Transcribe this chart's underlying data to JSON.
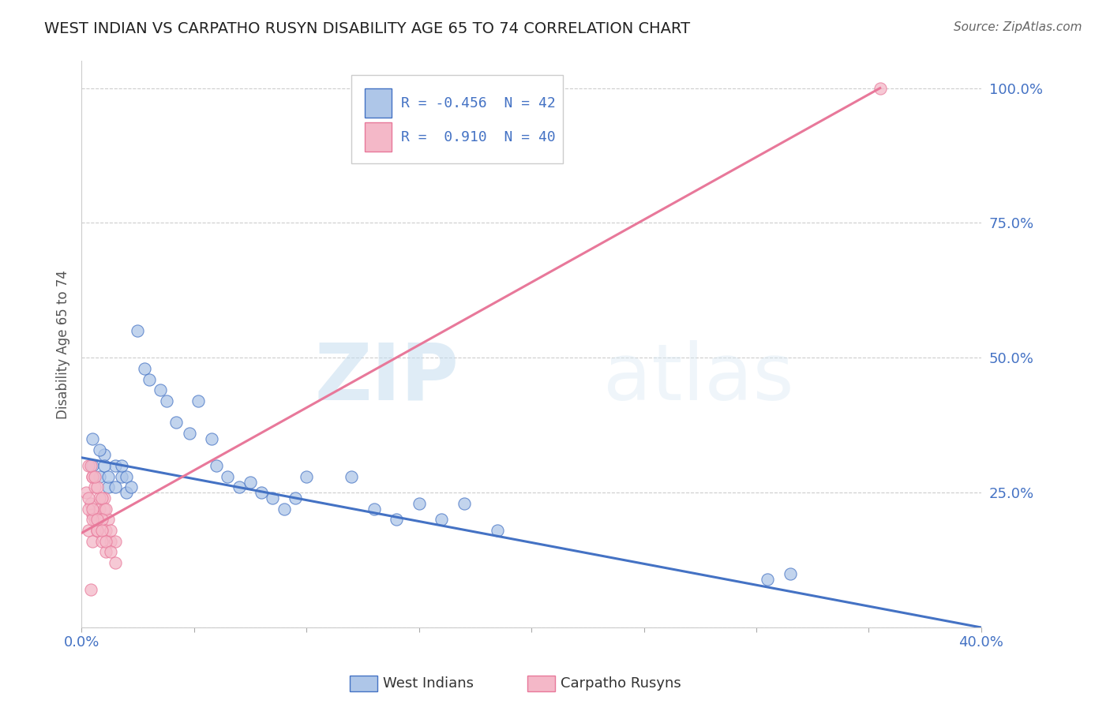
{
  "title": "WEST INDIAN VS CARPATHO RUSYN DISABILITY AGE 65 TO 74 CORRELATION CHART",
  "source": "Source: ZipAtlas.com",
  "ylabel": "Disability Age 65 to 74",
  "watermark_zip": "ZIP",
  "watermark_atlas": "atlas",
  "legend_blue_R": "-0.456",
  "legend_blue_N": "42",
  "legend_pink_R": "0.910",
  "legend_pink_N": "40",
  "blue_label": "West Indians",
  "pink_label": "Carpatho Rusyns",
  "xlim": [
    0.0,
    0.4
  ],
  "ylim": [
    0.0,
    1.05
  ],
  "x_ticks": [
    0.0,
    0.05,
    0.1,
    0.15,
    0.2,
    0.25,
    0.3,
    0.35,
    0.4
  ],
  "y_ticks": [
    0.0,
    0.25,
    0.5,
    0.75,
    1.0
  ],
  "background_color": "#ffffff",
  "grid_color": "#cccccc",
  "title_color": "#222222",
  "blue_color": "#aec6e8",
  "blue_line_color": "#4472c4",
  "pink_color": "#f4b8c8",
  "pink_line_color": "#e8789a",
  "blue_scatter_x": [
    0.005,
    0.008,
    0.01,
    0.012,
    0.015,
    0.018,
    0.02,
    0.005,
    0.008,
    0.01,
    0.012,
    0.015,
    0.018,
    0.02,
    0.022,
    0.025,
    0.028,
    0.03,
    0.035,
    0.038,
    0.042,
    0.048,
    0.052,
    0.058,
    0.06,
    0.065,
    0.07,
    0.075,
    0.08,
    0.085,
    0.09,
    0.095,
    0.1,
    0.12,
    0.13,
    0.14,
    0.15,
    0.16,
    0.17,
    0.185,
    0.305,
    0.315
  ],
  "blue_scatter_y": [
    0.3,
    0.28,
    0.32,
    0.26,
    0.3,
    0.28,
    0.25,
    0.35,
    0.33,
    0.3,
    0.28,
    0.26,
    0.3,
    0.28,
    0.26,
    0.55,
    0.48,
    0.46,
    0.44,
    0.42,
    0.38,
    0.36,
    0.42,
    0.35,
    0.3,
    0.28,
    0.26,
    0.27,
    0.25,
    0.24,
    0.22,
    0.24,
    0.28,
    0.28,
    0.22,
    0.2,
    0.23,
    0.2,
    0.23,
    0.18,
    0.09,
    0.1
  ],
  "pink_scatter_x": [
    0.002,
    0.004,
    0.005,
    0.006,
    0.008,
    0.01,
    0.005,
    0.006,
    0.008,
    0.01,
    0.012,
    0.003,
    0.005,
    0.007,
    0.009,
    0.011,
    0.003,
    0.005,
    0.007,
    0.009,
    0.011,
    0.013,
    0.003,
    0.005,
    0.007,
    0.009,
    0.011,
    0.013,
    0.015,
    0.003,
    0.005,
    0.007,
    0.009,
    0.011,
    0.013,
    0.015,
    0.004,
    0.006,
    0.004,
    0.355
  ],
  "pink_scatter_y": [
    0.25,
    0.23,
    0.21,
    0.2,
    0.22,
    0.24,
    0.28,
    0.26,
    0.24,
    0.22,
    0.2,
    0.3,
    0.28,
    0.26,
    0.24,
    0.22,
    0.18,
    0.16,
    0.18,
    0.2,
    0.18,
    0.16,
    0.22,
    0.2,
    0.18,
    0.16,
    0.14,
    0.18,
    0.16,
    0.24,
    0.22,
    0.2,
    0.18,
    0.16,
    0.14,
    0.12,
    0.3,
    0.28,
    0.07,
    1.0
  ],
  "blue_line_x": [
    0.0,
    0.4
  ],
  "blue_line_y": [
    0.315,
    0.0
  ],
  "pink_line_x": [
    0.0,
    0.355
  ],
  "pink_line_y": [
    0.175,
    1.0
  ]
}
